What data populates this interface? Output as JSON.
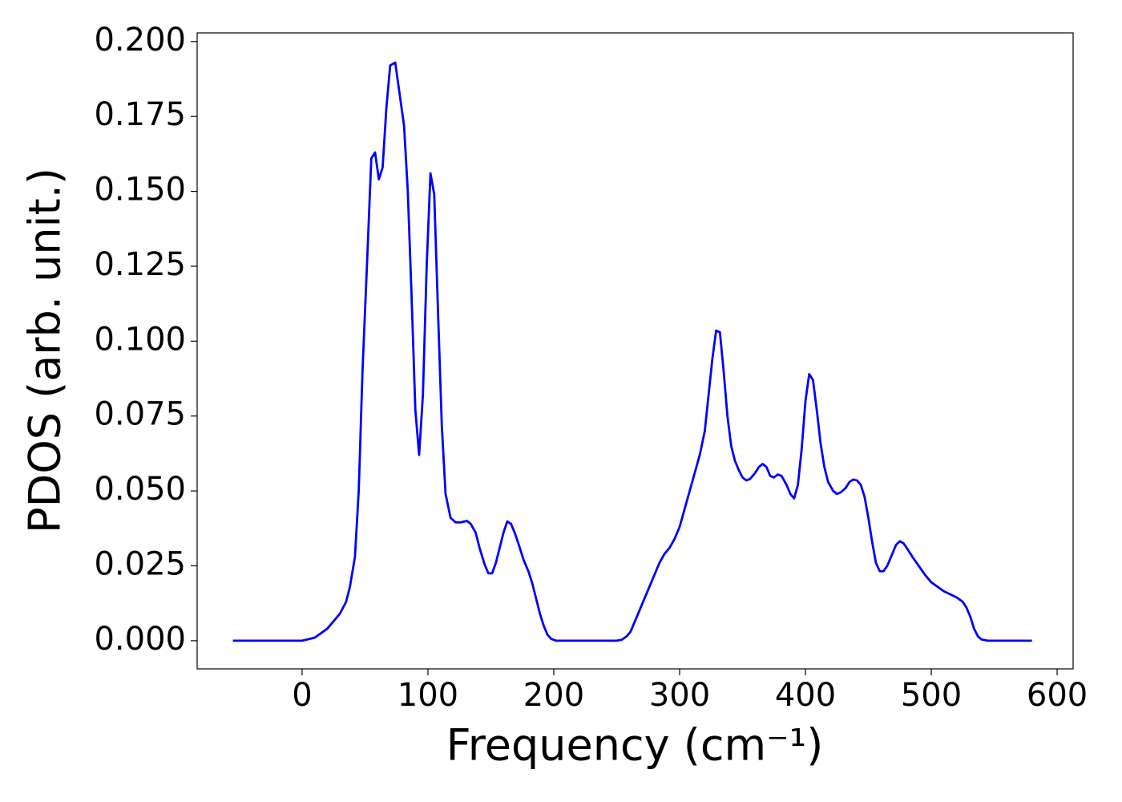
{
  "chart_data": {
    "type": "line",
    "xlabel": "Frequency (cm⁻¹)",
    "ylabel": "PDOS (arb. unit.)",
    "xlim": [
      -83.4,
      612.7
    ],
    "ylim": [
      -0.0094,
      0.2029
    ],
    "xticks": [
      0,
      100,
      200,
      300,
      400,
      500,
      600
    ],
    "yticks": [
      {
        "value": 0,
        "label": "0.000"
      },
      {
        "value": 0.025,
        "label": "0.025"
      },
      {
        "value": 0.05,
        "label": "0.050"
      },
      {
        "value": 0.075,
        "label": "0.075"
      },
      {
        "value": 0.1,
        "label": "0.100"
      },
      {
        "value": 0.125,
        "label": "0.125"
      },
      {
        "value": 0.15,
        "label": "0.150"
      },
      {
        "value": 0.175,
        "label": "0.175"
      },
      {
        "value": 0.2,
        "label": "0.200"
      }
    ],
    "grid": false,
    "series": [
      {
        "color": "#0000ff",
        "x": [
          -55,
          0,
          10,
          20,
          30,
          35,
          38,
          42,
          45,
          48,
          52,
          55,
          58,
          61,
          64,
          67,
          70,
          74,
          77,
          81,
          84,
          87,
          90,
          93,
          96,
          99,
          102,
          105,
          108,
          111,
          114,
          118,
          122,
          126,
          131,
          134,
          138,
          141,
          145,
          148,
          151,
          154,
          157,
          160,
          163,
          166,
          169,
          173,
          176,
          180,
          183,
          186,
          189,
          192,
          195,
          198,
          202,
          250,
          254,
          258,
          261,
          264,
          268,
          272,
          276,
          280,
          284,
          288,
          292,
          296,
          300,
          304,
          308,
          312,
          316,
          320,
          323,
          326,
          329,
          332,
          335,
          338,
          341,
          344,
          347,
          350,
          353,
          356,
          360,
          363,
          366,
          369,
          372,
          375,
          378,
          381,
          385,
          388,
          391,
          394,
          397,
          400,
          403,
          406,
          409,
          412,
          415,
          418,
          422,
          425,
          428,
          432,
          435,
          438,
          441,
          444,
          447,
          450,
          453,
          456,
          459,
          462,
          465,
          469,
          472,
          475,
          478,
          482,
          485,
          490,
          495,
          500,
          505,
          510,
          515,
          520,
          525,
          528,
          531,
          534,
          537,
          540,
          545,
          580
        ],
        "values": [
          0,
          0,
          0.001,
          0.004,
          0.009,
          0.013,
          0.018,
          0.028,
          0.05,
          0.09,
          0.13,
          0.161,
          0.163,
          0.154,
          0.158,
          0.178,
          0.192,
          0.193,
          0.184,
          0.172,
          0.15,
          0.115,
          0.077,
          0.062,
          0.082,
          0.125,
          0.156,
          0.149,
          0.11,
          0.072,
          0.049,
          0.041,
          0.0395,
          0.0395,
          0.04,
          0.039,
          0.036,
          0.031,
          0.0255,
          0.0225,
          0.0225,
          0.026,
          0.031,
          0.036,
          0.0398,
          0.039,
          0.036,
          0.031,
          0.027,
          0.023,
          0.019,
          0.014,
          0.009,
          0.005,
          0.002,
          0.0006,
          0,
          0,
          0.0003,
          0.0015,
          0.003,
          0.006,
          0.01,
          0.014,
          0.018,
          0.022,
          0.026,
          0.029,
          0.031,
          0.034,
          0.038,
          0.044,
          0.05,
          0.056,
          0.062,
          0.07,
          0.082,
          0.094,
          0.1035,
          0.103,
          0.09,
          0.075,
          0.065,
          0.06,
          0.057,
          0.0545,
          0.0535,
          0.054,
          0.056,
          0.058,
          0.059,
          0.058,
          0.055,
          0.0545,
          0.0555,
          0.055,
          0.052,
          0.049,
          0.0475,
          0.052,
          0.064,
          0.08,
          0.089,
          0.087,
          0.077,
          0.066,
          0.058,
          0.053,
          0.05,
          0.049,
          0.0495,
          0.051,
          0.053,
          0.0538,
          0.0535,
          0.052,
          0.048,
          0.041,
          0.033,
          0.026,
          0.0232,
          0.0232,
          0.025,
          0.029,
          0.032,
          0.0332,
          0.0325,
          0.03,
          0.028,
          0.025,
          0.022,
          0.0195,
          0.018,
          0.0165,
          0.0155,
          0.0145,
          0.013,
          0.011,
          0.008,
          0.004,
          0.0015,
          0.0004,
          0,
          0
        ]
      }
    ]
  }
}
